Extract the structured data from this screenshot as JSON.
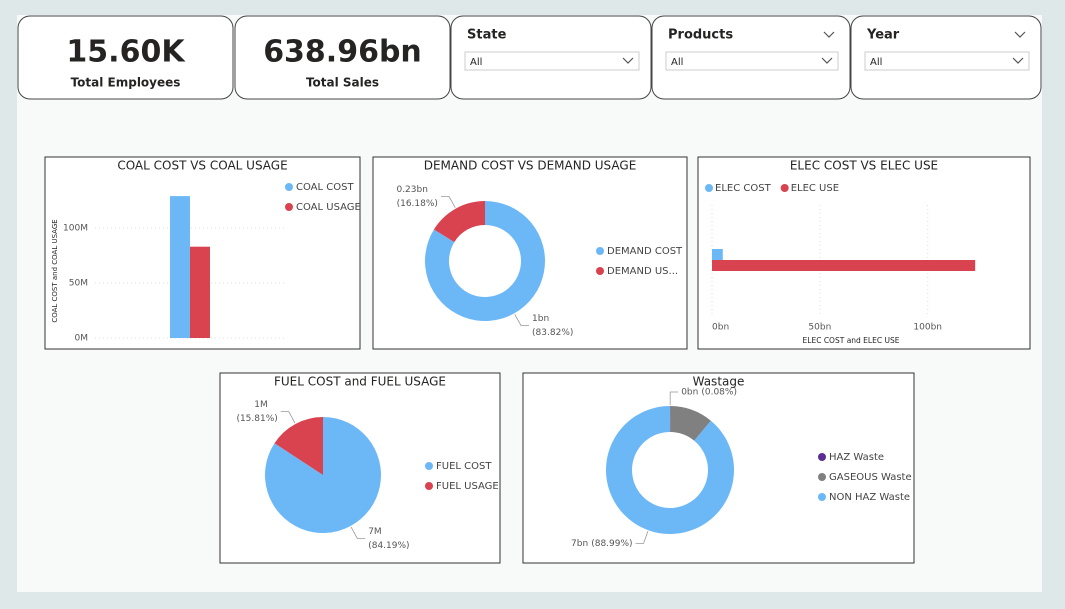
{
  "cards": [
    {
      "value": "15.60K",
      "label": "Total Employees"
    },
    {
      "value": "638.96bn",
      "label": "Total Sales"
    }
  ],
  "slicers": [
    {
      "title": "State",
      "value": "All"
    },
    {
      "title": "Products",
      "value": "All"
    },
    {
      "title": "Year",
      "value": "All"
    }
  ],
  "chart_data": [
    {
      "type": "bar",
      "title": "COAL COST VS COAL USAGE",
      "y_label": "COAL COST and COAL USAGE",
      "categories": [
        null
      ],
      "series": [
        {
          "name": "COAL COST",
          "color": "#6cb8f7",
          "values": [
            129
          ]
        },
        {
          "name": "COAL USAGE",
          "color": "#d9434f",
          "values": [
            83
          ]
        }
      ],
      "ylim": [
        0,
        140
      ],
      "yticks": [
        {
          "value": 0,
          "label": "0M"
        },
        {
          "value": 50,
          "label": "50M"
        },
        {
          "value": 100,
          "label": "100M"
        }
      ],
      "grid": true,
      "legend": "right"
    },
    {
      "type": "donut",
      "title": "DEMAND COST VS DEMAND USAGE",
      "categories": [
        "DEMAND COST",
        "DEMAND US..."
      ],
      "values": [
        1.19,
        0.23
      ],
      "value_labels": [
        "1bn",
        "0.23bn"
      ],
      "percent_labels": [
        "(83.82%)",
        "(16.18%)"
      ],
      "colors": [
        "#6cb8f7",
        "#d9434f"
      ],
      "legend": "right"
    },
    {
      "type": "hbar",
      "title": "ELEC COST VS ELEC USE",
      "x_label": "ELEC COST and ELEC USE",
      "categories": [
        null
      ],
      "series": [
        {
          "name": "ELEC COST",
          "color": "#6cb8f7",
          "values": [
            5
          ]
        },
        {
          "name": "ELEC USE",
          "color": "#d9434f",
          "values": [
            122
          ]
        }
      ],
      "xlim": [
        0,
        140
      ],
      "xticks": [
        {
          "value": 0,
          "label": "0bn"
        },
        {
          "value": 50,
          "label": "50bn"
        },
        {
          "value": 100,
          "label": "100bn"
        }
      ],
      "grid": true,
      "legend": "top-left"
    },
    {
      "type": "pie",
      "title": "FUEL COST and FUEL USAGE",
      "categories": [
        "FUEL COST",
        "FUEL USAGE"
      ],
      "values": [
        7,
        1.31
      ],
      "value_labels": [
        "7M",
        "1M"
      ],
      "percent_labels": [
        "(84.19%)",
        "(15.81%)"
      ],
      "colors": [
        "#6cb8f7",
        "#d9434f"
      ],
      "legend": "right"
    },
    {
      "type": "donut",
      "title": "Wastage",
      "categories": [
        "HAZ Waste",
        "GASEOUS Waste",
        "NON HAZ Waste"
      ],
      "values": [
        0.0063,
        0.86,
        7
      ],
      "value_labels": [
        "0bn",
        null,
        "7bn"
      ],
      "percent_labels": [
        "(0.08%)",
        null,
        "(88.99%)"
      ],
      "colors": [
        "#5c2d91",
        "#808080",
        "#6cb8f7"
      ],
      "legend": "right"
    }
  ]
}
